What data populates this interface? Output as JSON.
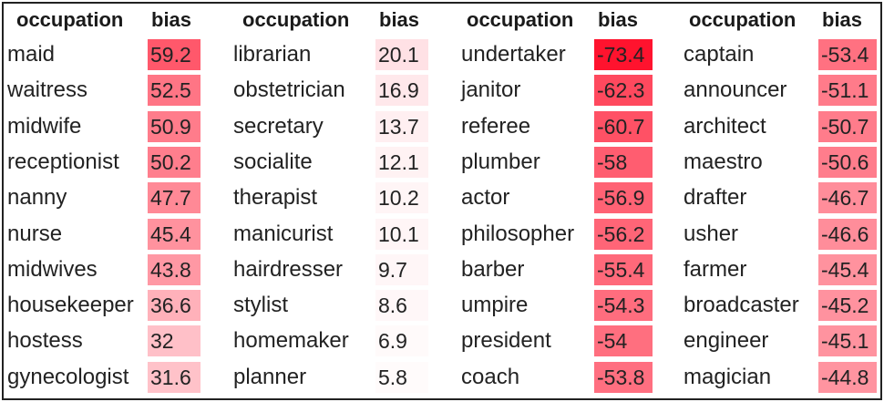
{
  "headers": {
    "occupation": "occupation",
    "bias": "bias"
  },
  "blocks": [
    {
      "rows": [
        {
          "occupation": "maid",
          "bias": "59.2"
        },
        {
          "occupation": "waitress",
          "bias": "52.5"
        },
        {
          "occupation": "midwife",
          "bias": "50.9"
        },
        {
          "occupation": "receptionist",
          "bias": "50.2"
        },
        {
          "occupation": "nanny",
          "bias": "47.7"
        },
        {
          "occupation": "nurse",
          "bias": "45.4"
        },
        {
          "occupation": "midwives",
          "bias": "43.8"
        },
        {
          "occupation": "housekeeper",
          "bias": "36.6"
        },
        {
          "occupation": "hostess",
          "bias": "32"
        },
        {
          "occupation": "gynecologist",
          "bias": "31.6"
        }
      ]
    },
    {
      "rows": [
        {
          "occupation": "librarian",
          "bias": "20.1"
        },
        {
          "occupation": "obstetrician",
          "bias": "16.9"
        },
        {
          "occupation": "secretary",
          "bias": "13.7"
        },
        {
          "occupation": "socialite",
          "bias": "12.1"
        },
        {
          "occupation": "therapist",
          "bias": "10.2"
        },
        {
          "occupation": "manicurist",
          "bias": "10.1"
        },
        {
          "occupation": "hairdresser",
          "bias": "9.7"
        },
        {
          "occupation": "stylist",
          "bias": "8.6"
        },
        {
          "occupation": "homemaker",
          "bias": "6.9"
        },
        {
          "occupation": "planner",
          "bias": "5.8"
        }
      ]
    },
    {
      "rows": [
        {
          "occupation": "undertaker",
          "bias": "-73.4"
        },
        {
          "occupation": "janitor",
          "bias": "-62.3"
        },
        {
          "occupation": "referee",
          "bias": "-60.7"
        },
        {
          "occupation": "plumber",
          "bias": "-58"
        },
        {
          "occupation": "actor",
          "bias": "-56.9"
        },
        {
          "occupation": "philosopher",
          "bias": "-56.2"
        },
        {
          "occupation": "barber",
          "bias": "-55.4"
        },
        {
          "occupation": "umpire",
          "bias": "-54.3"
        },
        {
          "occupation": "president",
          "bias": "-54"
        },
        {
          "occupation": "coach",
          "bias": "-53.8"
        }
      ]
    },
    {
      "rows": [
        {
          "occupation": "captain",
          "bias": "-53.4"
        },
        {
          "occupation": "announcer",
          "bias": "-51.1"
        },
        {
          "occupation": "architect",
          "bias": "-50.7"
        },
        {
          "occupation": "maestro",
          "bias": "-50.6"
        },
        {
          "occupation": "drafter",
          "bias": "-46.7"
        },
        {
          "occupation": "usher",
          "bias": "-46.6"
        },
        {
          "occupation": "farmer",
          "bias": "-45.4"
        },
        {
          "occupation": "broadcaster",
          "bias": "-45.2"
        },
        {
          "occupation": "engineer",
          "bias": "-45.1"
        },
        {
          "occupation": "magician",
          "bias": "-44.8"
        }
      ]
    }
  ],
  "colors": {
    "max_red": "#f5132e",
    "min_tint": "#ffffff"
  }
}
